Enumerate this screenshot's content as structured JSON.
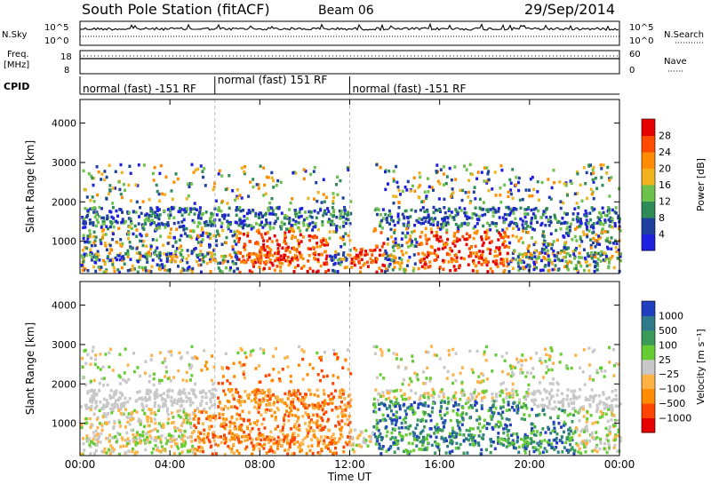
{
  "header": {
    "station": "South Pole Station (fitACF)",
    "beam": "Beam 06",
    "date": "29/Sep/2014"
  },
  "left_labels": {
    "nsky": "N.Sky",
    "nsky_hi": "10^5",
    "nsky_lo": "10^0",
    "freq": "Freq.",
    "freq_unit": "[MHz]",
    "freq_hi": "18",
    "freq_lo": "8",
    "cpid": "CPID"
  },
  "right_labels": {
    "nsearch_hi": "10^5",
    "nsearch_lo": "10^0",
    "nsearch": "N.Search",
    "nave_hi": "60",
    "nave_lo": "0",
    "nave": "Nave"
  },
  "cpid_segments": [
    {
      "label": "normal (fast) -151 RF",
      "start": 0,
      "end": 6
    },
    {
      "label": "normal (fast) 151 RF",
      "start": 6,
      "end": 12
    },
    {
      "label": "normal (fast) -151 RF",
      "start": 12,
      "end": 24
    }
  ],
  "chart_data": [
    {
      "type": "heatmap",
      "name": "power",
      "ylabel": "Slant Range [km]",
      "xlabel": "",
      "x_range_hours": [
        0,
        24
      ],
      "ylim": [
        180,
        4600
      ],
      "yticks": [
        1000,
        2000,
        3000,
        4000
      ],
      "xticks": [
        "00:00",
        "04:00",
        "08:00",
        "12:00",
        "16:00",
        "20:00",
        "00:00"
      ],
      "colorbar": {
        "label": "Power [dB]",
        "ticks": [
          "4",
          "8",
          "12",
          "16",
          "20",
          "24",
          "28"
        ],
        "colors": [
          "#1f1fe0",
          "#2040a0",
          "#2e8b57",
          "#6cc24a",
          "#f2b21e",
          "#ff8c00",
          "#ff4a00",
          "#e60000"
        ]
      }
    },
    {
      "type": "heatmap",
      "name": "velocity",
      "ylabel": "Slant Range [km]",
      "xlabel": "Time UT",
      "x_range_hours": [
        0,
        24
      ],
      "ylim": [
        180,
        4600
      ],
      "yticks": [
        1000,
        2000,
        3000,
        4000
      ],
      "xticks": [
        "00:00",
        "04:00",
        "08:00",
        "12:00",
        "16:00",
        "20:00",
        "00:00"
      ],
      "colorbar": {
        "label": "Velocity [m s⁻¹]",
        "ticks": [
          "1000",
          "500",
          "100",
          "25",
          "−25",
          "−100",
          "−500",
          "−1000"
        ],
        "colors": [
          "#1f3fbf",
          "#2e7a8a",
          "#3a9a5a",
          "#66cc33",
          "#c8c8c8",
          "#ffb347",
          "#ff8c00",
          "#ff4500",
          "#e60000"
        ]
      }
    }
  ]
}
